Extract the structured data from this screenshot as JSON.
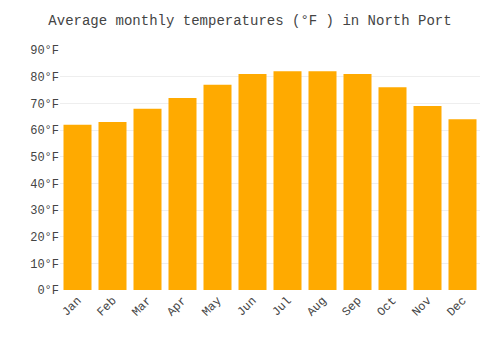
{
  "chart_data": {
    "type": "bar",
    "title": "Average monthly temperatures (°F ) in North Port",
    "categories": [
      "Jan",
      "Feb",
      "Mar",
      "Apr",
      "May",
      "Jun",
      "Jul",
      "Aug",
      "Sep",
      "Oct",
      "Nov",
      "Dec"
    ],
    "values": [
      62,
      63,
      68,
      72,
      77,
      81,
      82,
      82,
      81,
      76,
      69,
      64
    ],
    "color": "#FFAA00",
    "ylim": [
      0,
      90
    ],
    "yticks": [
      {
        "value": 0,
        "label": "0°F"
      },
      {
        "value": 10,
        "label": "10°F"
      },
      {
        "value": 20,
        "label": "20°F"
      },
      {
        "value": 30,
        "label": "30°F"
      },
      {
        "value": 40,
        "label": "40°F"
      },
      {
        "value": 50,
        "label": "50°F"
      },
      {
        "value": 60,
        "label": "60°F"
      },
      {
        "value": 70,
        "label": "70°F"
      },
      {
        "value": 80,
        "label": "80°F"
      },
      {
        "value": 90,
        "label": "90°F"
      }
    ],
    "grid": true
  }
}
